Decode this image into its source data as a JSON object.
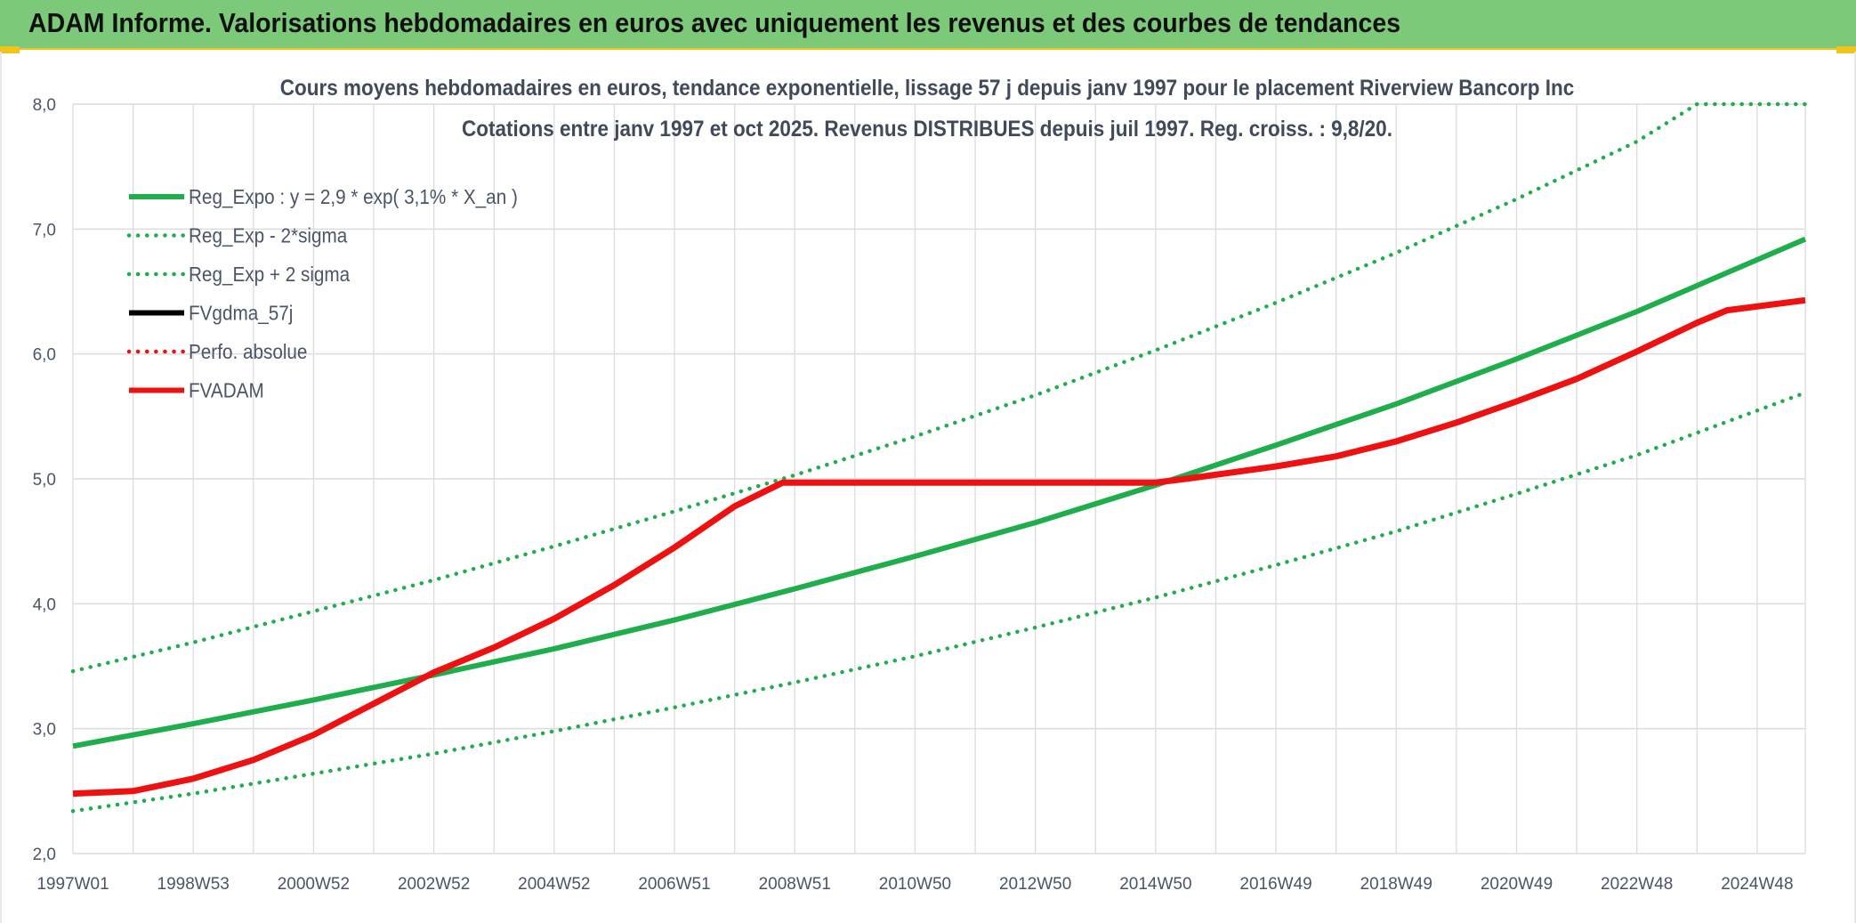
{
  "banner": {
    "title": "ADAM Informe. Valorisations hebdomadaires en euros avec uniquement les revenus et des courbes de tendances"
  },
  "colors": {
    "banner_bg": "#7dc97a",
    "accent_yellow": "#f0c419",
    "green": "#1fae4b",
    "red": "#ee1111",
    "black": "#000000",
    "grid": "#dcdcdc",
    "title_text": "#404a5a"
  },
  "chart_data": {
    "type": "line",
    "title": "Cours moyens hebdomadaires en euros, tendance exponentielle, lissage 57 j depuis janv 1997 pour le placement Riverview Bancorp Inc",
    "subtitle": "Cotations entre janv 1997 et oct 2025. Revenus DISTRIBUES depuis juil 1997. Reg. croiss. : 9,8/20.",
    "xlabel": "",
    "ylabel": "",
    "xlim": [
      1997.0,
      2025.8
    ],
    "ylim": [
      2.0,
      8.0
    ],
    "y_ticks": [
      "2,0",
      "3,0",
      "4,0",
      "5,0",
      "6,0",
      "7,0",
      "8,0"
    ],
    "x_ticks": [
      {
        "label": "1997W01",
        "x": 1997.0
      },
      {
        "label": "1998W53",
        "x": 1999.0
      },
      {
        "label": "2000W52",
        "x": 2001.0
      },
      {
        "label": "2002W52",
        "x": 2003.0
      },
      {
        "label": "2004W52",
        "x": 2005.0
      },
      {
        "label": "2006W51",
        "x": 2007.0
      },
      {
        "label": "2008W51",
        "x": 2009.0
      },
      {
        "label": "2010W50",
        "x": 2011.0
      },
      {
        "label": "2012W50",
        "x": 2013.0
      },
      {
        "label": "2014W50",
        "x": 2015.0
      },
      {
        "label": "2016W49",
        "x": 2017.0
      },
      {
        "label": "2018W49",
        "x": 2019.0
      },
      {
        "label": "2020W49",
        "x": 2021.0
      },
      {
        "label": "2022W48",
        "x": 2023.0
      },
      {
        "label": "2024W48",
        "x": 2025.0
      }
    ],
    "grid": true,
    "legend_position": "top-left",
    "series": [
      {
        "name": "Reg_Expo : y = 2,9 * exp( 3,1% *  X_an )",
        "style": "solid",
        "color": "#1fae4b",
        "x": [
          1997.0,
          1999.0,
          2001.0,
          2003.0,
          2005.0,
          2007.0,
          2009.0,
          2011.0,
          2013.0,
          2015.0,
          2017.0,
          2019.0,
          2021.0,
          2023.0,
          2025.8
        ],
        "y": [
          2.86,
          3.04,
          3.23,
          3.43,
          3.64,
          3.87,
          4.12,
          4.38,
          4.65,
          4.95,
          5.27,
          5.6,
          5.96,
          6.34,
          6.92
        ]
      },
      {
        "name": "Reg_Exp - 2*sigma",
        "style": "dotted",
        "color": "#1fae4b",
        "x": [
          1997.0,
          1999.0,
          2001.0,
          2003.0,
          2005.0,
          2007.0,
          2009.0,
          2011.0,
          2013.0,
          2015.0,
          2017.0,
          2019.0,
          2021.0,
          2023.0,
          2025.8
        ],
        "y": [
          2.34,
          2.48,
          2.64,
          2.8,
          2.98,
          3.17,
          3.37,
          3.58,
          3.81,
          4.05,
          4.31,
          4.58,
          4.88,
          5.19,
          5.69
        ]
      },
      {
        "name": "Reg_Exp + 2 sigma",
        "style": "dotted",
        "color": "#1fae4b",
        "x": [
          1997.0,
          1999.0,
          2001.0,
          2003.0,
          2005.0,
          2007.0,
          2009.0,
          2011.0,
          2013.0,
          2015.0,
          2017.0,
          2019.0,
          2021.0,
          2023.0,
          2024.0,
          2025.8
        ],
        "y": [
          3.46,
          3.69,
          3.94,
          4.19,
          4.46,
          4.74,
          5.03,
          5.34,
          5.67,
          6.03,
          6.41,
          6.81,
          7.24,
          7.7,
          8.0,
          8.0
        ]
      },
      {
        "name": "FVgdma_57j",
        "style": "solid",
        "color": "#000000",
        "x": [],
        "y": []
      },
      {
        "name": "Perfo. absolue",
        "style": "dotted",
        "color": "#ee1111",
        "x": [],
        "y": []
      },
      {
        "name": "FVADAM",
        "style": "solid",
        "color": "#ee1111",
        "x": [
          1997.0,
          1998.0,
          1999.0,
          2000.0,
          2001.0,
          2002.0,
          2003.0,
          2004.0,
          2005.0,
          2006.0,
          2007.0,
          2008.0,
          2008.8,
          2009.0,
          2011.0,
          2013.0,
          2015.0,
          2015.5,
          2017.0,
          2018.0,
          2019.0,
          2020.0,
          2021.0,
          2022.0,
          2023.0,
          2024.0,
          2024.5,
          2025.8
        ],
        "y": [
          2.48,
          2.5,
          2.6,
          2.75,
          2.95,
          3.2,
          3.45,
          3.65,
          3.88,
          4.15,
          4.45,
          4.78,
          4.97,
          4.97,
          4.97,
          4.97,
          4.97,
          5.0,
          5.1,
          5.18,
          5.3,
          5.45,
          5.62,
          5.8,
          6.02,
          6.25,
          6.35,
          6.43
        ]
      }
    ]
  }
}
